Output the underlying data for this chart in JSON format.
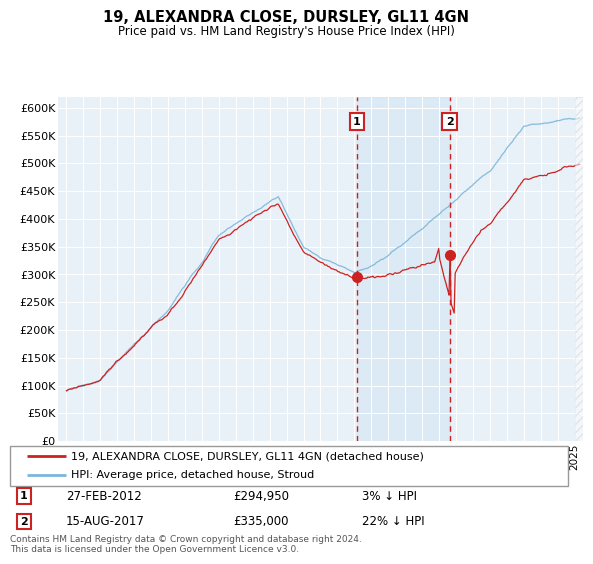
{
  "title": "19, ALEXANDRA CLOSE, DURSLEY, GL11 4GN",
  "subtitle": "Price paid vs. HM Land Registry's House Price Index (HPI)",
  "ylabel_ticks": [
    "£0",
    "£50K",
    "£100K",
    "£150K",
    "£200K",
    "£250K",
    "£300K",
    "£350K",
    "£400K",
    "£450K",
    "£500K",
    "£550K",
    "£600K"
  ],
  "ylim": [
    0,
    620000
  ],
  "xlim_start": 1994.5,
  "xlim_end": 2025.5,
  "sale1_x": 2012.15,
  "sale1_y": 294950,
  "sale1_label": "1",
  "sale1_date": "27-FEB-2012",
  "sale1_price": "£294,950",
  "sale1_hpi": "3% ↓ HPI",
  "sale2_x": 2017.62,
  "sale2_y": 335000,
  "sale2_label": "2",
  "sale2_date": "15-AUG-2017",
  "sale2_price": "£335,000",
  "sale2_hpi": "22% ↓ HPI",
  "hpi_color": "#7ab6d9",
  "sale_color": "#cc2222",
  "shading_color": "#ddeeff",
  "background_color": "#e8f0f8",
  "legend_label_property": "19, ALEXANDRA CLOSE, DURSLEY, GL11 4GN (detached house)",
  "legend_label_hpi": "HPI: Average price, detached house, Stroud",
  "footer": "Contains HM Land Registry data © Crown copyright and database right 2024.\nThis data is licensed under the Open Government Licence v3.0."
}
